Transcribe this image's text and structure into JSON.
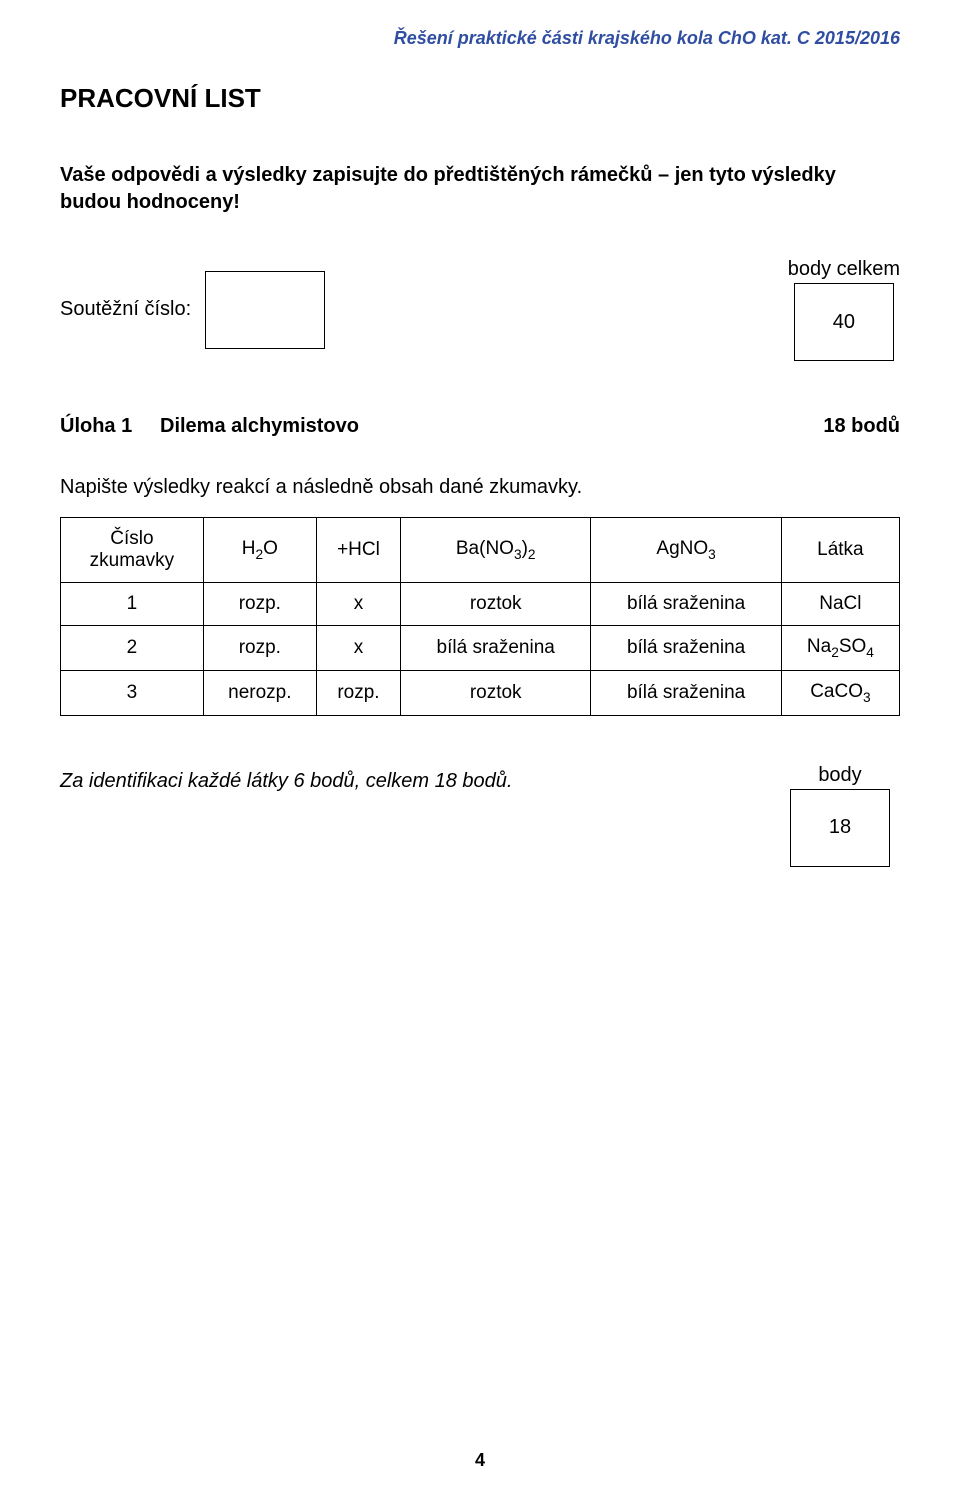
{
  "header": {
    "text": "Řešení praktické části krajského kola ChO kat. C 2015/2016",
    "color": "#2f4ea1"
  },
  "title": "PRACOVNÍ LIST",
  "intro": "Vaše odpovědi a výsledky zapisujte do předtištěných rámečků – jen tyto výsledky budou hodnoceny!",
  "competitor": {
    "label": "Soutěžní číslo:",
    "body_label": "body celkem",
    "total": "40"
  },
  "task": {
    "num": "Úloha 1",
    "title": "Dilema alchymistovo",
    "points": "18 bodů"
  },
  "instruction": "Napište výsledky reakcí a následně obsah dané zkumavky.",
  "table": {
    "columns": [
      "Číslo zkumavky",
      "H2O",
      "+HCl",
      "Ba(NO3)2",
      "AgNO3",
      "Látka"
    ],
    "rows": [
      [
        "1",
        "rozp.",
        "x",
        "roztok",
        "bílá sraženina",
        "NaCl"
      ],
      [
        "2",
        "rozp.",
        "x",
        "bílá sraženina",
        "bílá sraženina",
        "Na2SO4"
      ],
      [
        "3",
        "nerozp.",
        "rozp.",
        "roztok",
        "bílá sraženina",
        "CaCO3"
      ]
    ]
  },
  "footer": {
    "note": "Za identifikaci každé látky 6 bodů, celkem 18 bodů.",
    "body_label": "body",
    "score": "18"
  },
  "page_number": "4"
}
